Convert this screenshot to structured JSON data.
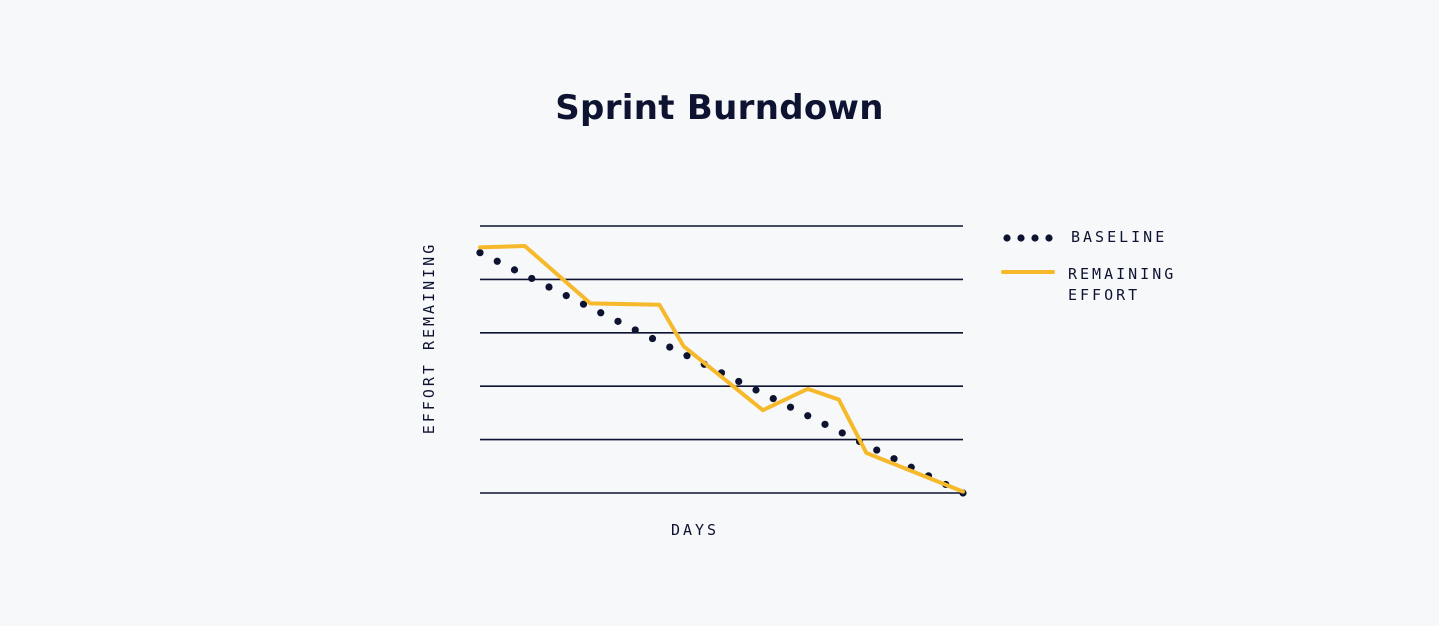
{
  "title": "Sprint Burndown",
  "chart_data": {
    "type": "line",
    "title": "Sprint Burndown",
    "xlabel": "DAYS",
    "ylabel": "EFFORT REMAINING",
    "grid": true,
    "legend": "right",
    "x": [
      0,
      1,
      2,
      3,
      4,
      5,
      6,
      7,
      8,
      9,
      10,
      11,
      12,
      13,
      14
    ],
    "xlim": [
      0,
      14
    ],
    "ylim": [
      0,
      100
    ],
    "series": [
      {
        "name": "BASELINE",
        "style": "dotted",
        "color": "#0d1330",
        "x": [
          0,
          14
        ],
        "values": [
          90,
          0
        ]
      },
      {
        "name": "REMAINING EFFORT",
        "style": "solid",
        "color": "#f6b92b",
        "x": [
          0,
          1.3,
          3.2,
          5.2,
          5.9,
          8.2,
          9.5,
          10.4,
          11.2,
          14
        ],
        "values": [
          92,
          92.5,
          71,
          70.5,
          55,
          31,
          39,
          35,
          15,
          0.5
        ]
      }
    ]
  }
}
